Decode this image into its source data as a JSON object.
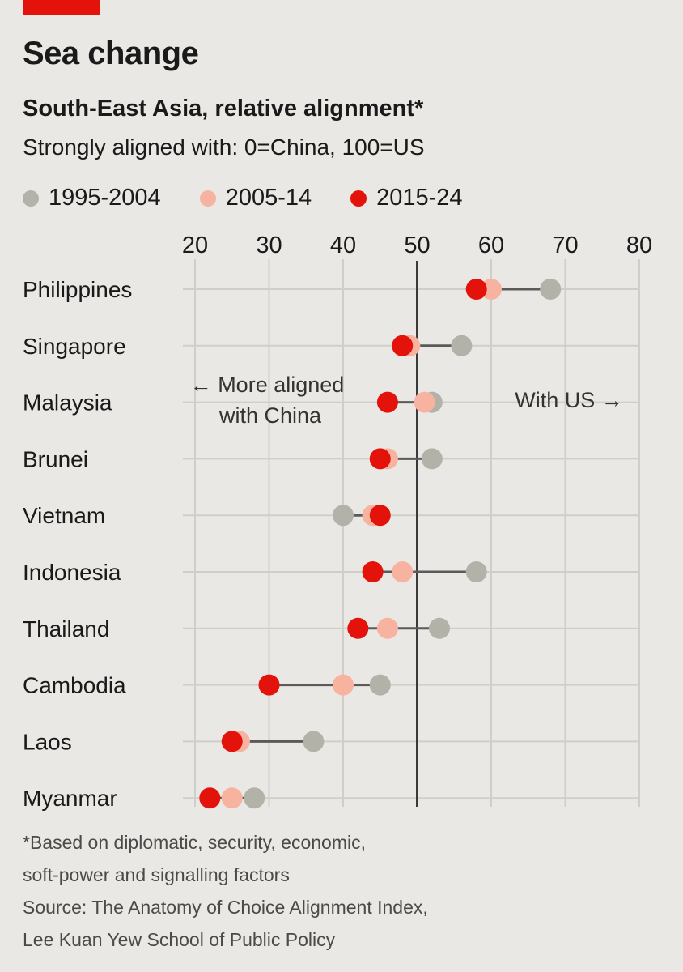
{
  "title": "Sea change",
  "subtitle": "South-East Asia, relative alignment*",
  "description": "Strongly aligned with: 0=China, 100=US",
  "legend": [
    {
      "label": "1995-2004",
      "color": "#b2b2a9"
    },
    {
      "label": "2005-14",
      "color": "#f7b39f"
    },
    {
      "label": "2015-24",
      "color": "#e3120b"
    }
  ],
  "annotations": {
    "china_line1": "← More aligned",
    "china_line2": "with China",
    "us": "With US →"
  },
  "chart_data": {
    "type": "scatter",
    "title": "South-East Asia, relative alignment*",
    "xlabel": "Strongly aligned with: 0=China, 100=US",
    "xlim": [
      20,
      80
    ],
    "xticks": [
      20,
      30,
      40,
      50,
      60,
      70,
      80
    ],
    "reference_line": 50,
    "grid": true,
    "categories": [
      "Philippines",
      "Singapore",
      "Malaysia",
      "Brunei",
      "Vietnam",
      "Indonesia",
      "Thailand",
      "Cambodia",
      "Laos",
      "Myanmar"
    ],
    "series": [
      {
        "name": "1995-2004",
        "color": "#b2b2a9",
        "values": [
          68,
          56,
          52,
          52,
          40,
          58,
          53,
          45,
          36,
          28
        ]
      },
      {
        "name": "2005-14",
        "color": "#f7b39f",
        "values": [
          60,
          49,
          51,
          46,
          44,
          48,
          46,
          40,
          26,
          25
        ]
      },
      {
        "name": "2015-24",
        "color": "#e3120b",
        "values": [
          58,
          48,
          46,
          45,
          45,
          44,
          42,
          30,
          25,
          22
        ]
      }
    ]
  },
  "footnote": {
    "line1": "*Based on diplomatic, security, economic,",
    "line2": "soft-power and signalling factors",
    "line3": "Source: The Anatomy of Choice Alignment Index,",
    "line4": "Lee Kuan Yew School of Public Policy"
  }
}
